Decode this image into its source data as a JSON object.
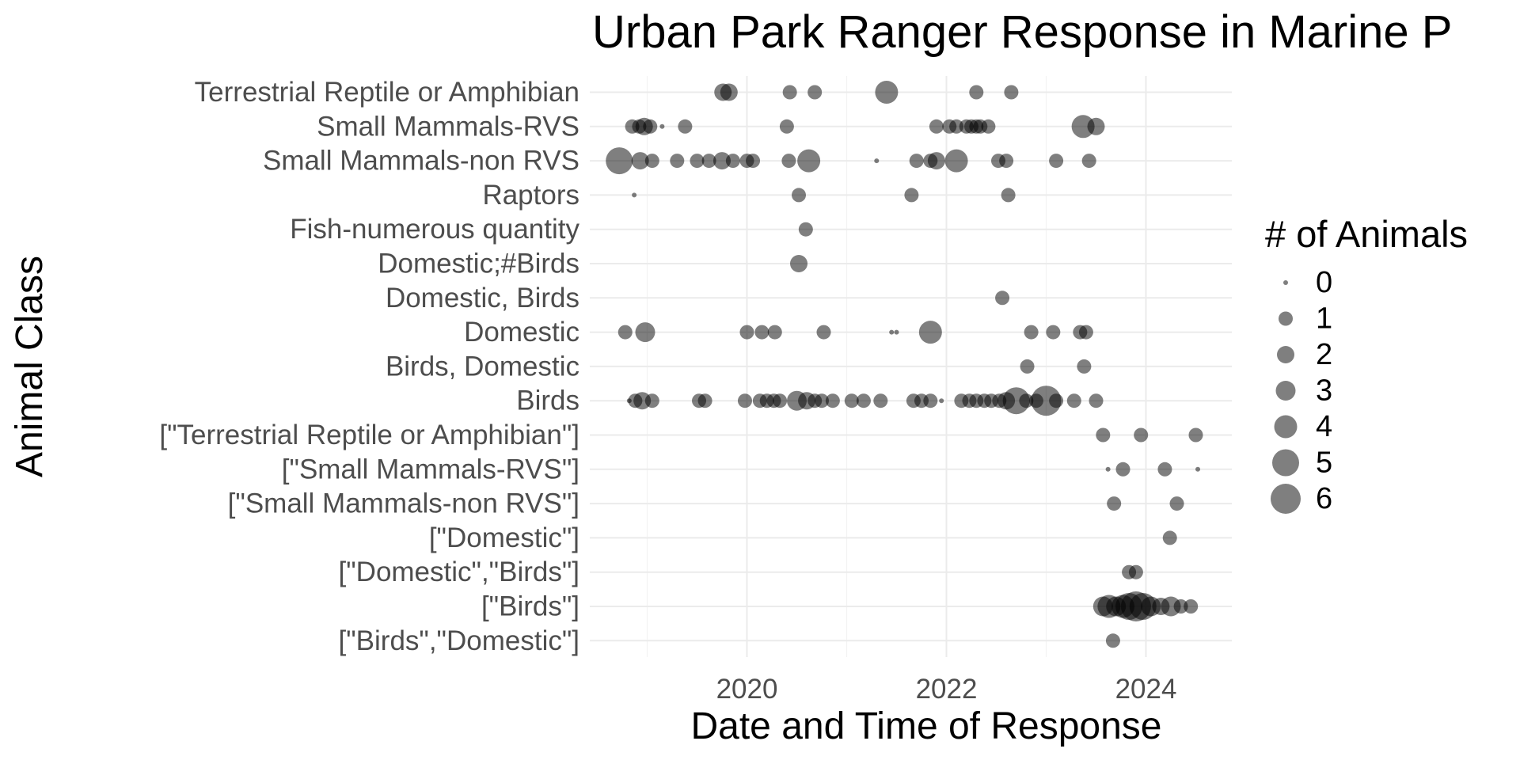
{
  "chart_data": {
    "type": "scatter",
    "title": "Urban Park Ranger Response in Marine P",
    "xlabel": "Date and Time of Response",
    "ylabel": "Animal Class",
    "xlim": [
      2018.6,
      2024.9
    ],
    "x_ticks": [
      2020,
      2022,
      2024
    ],
    "x_tick_labels": [
      "2020",
      "2022",
      "2024"
    ],
    "grid": true,
    "categories": [
      "Terrestrial Reptile or Amphibian",
      "Small Mammals-RVS",
      "Small Mammals-non RVS",
      "Raptors",
      "Fish-numerous quantity",
      "Domestic;#Birds",
      "Domestic, Birds",
      "Domestic",
      "Birds, Domestic",
      "Birds",
      "[\"Terrestrial Reptile or Amphibian\"]",
      "[\"Small Mammals-RVS\"]",
      "[\"Small Mammals-non RVS\"]",
      "[\"Domestic\"]",
      "[\"Domestic\",\"Birds\"]",
      "[\"Birds\"]",
      "[\"Birds\",\"Domestic\"]"
    ],
    "size_legend": {
      "title": "# of Animals",
      "placement": "right",
      "values": [
        0,
        1,
        2,
        3,
        4,
        5,
        6
      ],
      "labels": [
        "0",
        "1",
        "2",
        "3",
        "4",
        "5",
        "6"
      ]
    },
    "point_color": "#000000",
    "point_opacity": 0.5,
    "points": [
      {
        "x": 2019.76,
        "y": "Terrestrial Reptile or Amphibian",
        "size": 2
      },
      {
        "x": 2019.82,
        "y": "Terrestrial Reptile or Amphibian",
        "size": 2
      },
      {
        "x": 2020.43,
        "y": "Terrestrial Reptile or Amphibian",
        "size": 1
      },
      {
        "x": 2020.68,
        "y": "Terrestrial Reptile or Amphibian",
        "size": 1
      },
      {
        "x": 2021.4,
        "y": "Terrestrial Reptile or Amphibian",
        "size": 4
      },
      {
        "x": 2022.3,
        "y": "Terrestrial Reptile or Amphibian",
        "size": 1
      },
      {
        "x": 2022.65,
        "y": "Terrestrial Reptile or Amphibian",
        "size": 1
      },
      {
        "x": 2018.85,
        "y": "Small Mammals-RVS",
        "size": 1
      },
      {
        "x": 2018.92,
        "y": "Small Mammals-RVS",
        "size": 1
      },
      {
        "x": 2018.97,
        "y": "Small Mammals-RVS",
        "size": 2
      },
      {
        "x": 2019.03,
        "y": "Small Mammals-RVS",
        "size": 1
      },
      {
        "x": 2019.15,
        "y": "Small Mammals-RVS",
        "size": 0
      },
      {
        "x": 2019.38,
        "y": "Small Mammals-RVS",
        "size": 1
      },
      {
        "x": 2020.4,
        "y": "Small Mammals-RVS",
        "size": 1
      },
      {
        "x": 2021.9,
        "y": "Small Mammals-RVS",
        "size": 1
      },
      {
        "x": 2022.03,
        "y": "Small Mammals-RVS",
        "size": 1
      },
      {
        "x": 2022.1,
        "y": "Small Mammals-RVS",
        "size": 1
      },
      {
        "x": 2022.2,
        "y": "Small Mammals-RVS",
        "size": 1
      },
      {
        "x": 2022.25,
        "y": "Small Mammals-RVS",
        "size": 1
      },
      {
        "x": 2022.3,
        "y": "Small Mammals-RVS",
        "size": 1
      },
      {
        "x": 2022.34,
        "y": "Small Mammals-RVS",
        "size": 1
      },
      {
        "x": 2022.42,
        "y": "Small Mammals-RVS",
        "size": 1
      },
      {
        "x": 2023.37,
        "y": "Small Mammals-RVS",
        "size": 4
      },
      {
        "x": 2023.5,
        "y": "Small Mammals-RVS",
        "size": 2
      },
      {
        "x": 2018.72,
        "y": "Small Mammals-non RVS",
        "size": 5
      },
      {
        "x": 2018.93,
        "y": "Small Mammals-non RVS",
        "size": 2
      },
      {
        "x": 2019.05,
        "y": "Small Mammals-non RVS",
        "size": 1
      },
      {
        "x": 2019.3,
        "y": "Small Mammals-non RVS",
        "size": 1
      },
      {
        "x": 2019.5,
        "y": "Small Mammals-non RVS",
        "size": 1
      },
      {
        "x": 2019.62,
        "y": "Small Mammals-non RVS",
        "size": 1
      },
      {
        "x": 2019.75,
        "y": "Small Mammals-non RVS",
        "size": 2
      },
      {
        "x": 2019.86,
        "y": "Small Mammals-non RVS",
        "size": 1
      },
      {
        "x": 2020.0,
        "y": "Small Mammals-non RVS",
        "size": 1
      },
      {
        "x": 2020.06,
        "y": "Small Mammals-non RVS",
        "size": 1
      },
      {
        "x": 2020.42,
        "y": "Small Mammals-non RVS",
        "size": 1
      },
      {
        "x": 2020.62,
        "y": "Small Mammals-non RVS",
        "size": 4
      },
      {
        "x": 2021.3,
        "y": "Small Mammals-non RVS",
        "size": 0
      },
      {
        "x": 2021.7,
        "y": "Small Mammals-non RVS",
        "size": 1
      },
      {
        "x": 2021.84,
        "y": "Small Mammals-non RVS",
        "size": 1
      },
      {
        "x": 2021.9,
        "y": "Small Mammals-non RVS",
        "size": 2
      },
      {
        "x": 2022.1,
        "y": "Small Mammals-non RVS",
        "size": 4
      },
      {
        "x": 2022.52,
        "y": "Small Mammals-non RVS",
        "size": 1
      },
      {
        "x": 2022.6,
        "y": "Small Mammals-non RVS",
        "size": 1
      },
      {
        "x": 2023.1,
        "y": "Small Mammals-non RVS",
        "size": 1
      },
      {
        "x": 2023.43,
        "y": "Small Mammals-non RVS",
        "size": 1
      },
      {
        "x": 2018.87,
        "y": "Raptors",
        "size": 0
      },
      {
        "x": 2020.52,
        "y": "Raptors",
        "size": 1
      },
      {
        "x": 2021.65,
        "y": "Raptors",
        "size": 1
      },
      {
        "x": 2022.62,
        "y": "Raptors",
        "size": 1
      },
      {
        "x": 2020.59,
        "y": "Fish-numerous quantity",
        "size": 1
      },
      {
        "x": 2020.52,
        "y": "Domestic;#Birds",
        "size": 2
      },
      {
        "x": 2022.56,
        "y": "Domestic, Birds",
        "size": 1
      },
      {
        "x": 2018.78,
        "y": "Domestic",
        "size": 1
      },
      {
        "x": 2018.98,
        "y": "Domestic",
        "size": 3
      },
      {
        "x": 2020.0,
        "y": "Domestic",
        "size": 1
      },
      {
        "x": 2020.15,
        "y": "Domestic",
        "size": 1
      },
      {
        "x": 2020.28,
        "y": "Domestic",
        "size": 1
      },
      {
        "x": 2020.77,
        "y": "Domestic",
        "size": 1
      },
      {
        "x": 2021.45,
        "y": "Domestic",
        "size": 0
      },
      {
        "x": 2021.5,
        "y": "Domestic",
        "size": 0
      },
      {
        "x": 2021.84,
        "y": "Domestic",
        "size": 4
      },
      {
        "x": 2022.85,
        "y": "Domestic",
        "size": 1
      },
      {
        "x": 2023.07,
        "y": "Domestic",
        "size": 1
      },
      {
        "x": 2023.34,
        "y": "Domestic",
        "size": 1
      },
      {
        "x": 2023.4,
        "y": "Domestic",
        "size": 1
      },
      {
        "x": 2022.81,
        "y": "Birds, Domestic",
        "size": 1
      },
      {
        "x": 2023.38,
        "y": "Birds, Domestic",
        "size": 1
      },
      {
        "x": 2018.82,
        "y": "Birds",
        "size": 0
      },
      {
        "x": 2018.88,
        "y": "Birds",
        "size": 1
      },
      {
        "x": 2018.95,
        "y": "Birds",
        "size": 2
      },
      {
        "x": 2019.05,
        "y": "Birds",
        "size": 1
      },
      {
        "x": 2019.52,
        "y": "Birds",
        "size": 1
      },
      {
        "x": 2019.58,
        "y": "Birds",
        "size": 1
      },
      {
        "x": 2019.98,
        "y": "Birds",
        "size": 1
      },
      {
        "x": 2020.13,
        "y": "Birds",
        "size": 1
      },
      {
        "x": 2020.2,
        "y": "Birds",
        "size": 1
      },
      {
        "x": 2020.27,
        "y": "Birds",
        "size": 1
      },
      {
        "x": 2020.33,
        "y": "Birds",
        "size": 1
      },
      {
        "x": 2020.5,
        "y": "Birds",
        "size": 3
      },
      {
        "x": 2020.6,
        "y": "Birds",
        "size": 2
      },
      {
        "x": 2020.68,
        "y": "Birds",
        "size": 1
      },
      {
        "x": 2020.75,
        "y": "Birds",
        "size": 1
      },
      {
        "x": 2020.86,
        "y": "Birds",
        "size": 1
      },
      {
        "x": 2021.05,
        "y": "Birds",
        "size": 1
      },
      {
        "x": 2021.17,
        "y": "Birds",
        "size": 1
      },
      {
        "x": 2021.34,
        "y": "Birds",
        "size": 1
      },
      {
        "x": 2021.67,
        "y": "Birds",
        "size": 1
      },
      {
        "x": 2021.75,
        "y": "Birds",
        "size": 1
      },
      {
        "x": 2021.84,
        "y": "Birds",
        "size": 1
      },
      {
        "x": 2021.95,
        "y": "Birds",
        "size": 0
      },
      {
        "x": 2022.15,
        "y": "Birds",
        "size": 1
      },
      {
        "x": 2022.23,
        "y": "Birds",
        "size": 1
      },
      {
        "x": 2022.3,
        "y": "Birds",
        "size": 1
      },
      {
        "x": 2022.38,
        "y": "Birds",
        "size": 1
      },
      {
        "x": 2022.45,
        "y": "Birds",
        "size": 1
      },
      {
        "x": 2022.53,
        "y": "Birds",
        "size": 1
      },
      {
        "x": 2022.6,
        "y": "Birds",
        "size": 2
      },
      {
        "x": 2022.7,
        "y": "Birds",
        "size": 5
      },
      {
        "x": 2022.8,
        "y": "Birds",
        "size": 1
      },
      {
        "x": 2022.9,
        "y": "Birds",
        "size": 1
      },
      {
        "x": 2023.0,
        "y": "Birds",
        "size": 6
      },
      {
        "x": 2023.1,
        "y": "Birds",
        "size": 1
      },
      {
        "x": 2023.28,
        "y": "Birds",
        "size": 1
      },
      {
        "x": 2023.5,
        "y": "Birds",
        "size": 1
      },
      {
        "x": 2023.57,
        "y": "[\"Terrestrial Reptile or Amphibian\"]",
        "size": 1
      },
      {
        "x": 2023.95,
        "y": "[\"Terrestrial Reptile or Amphibian\"]",
        "size": 1
      },
      {
        "x": 2024.5,
        "y": "[\"Terrestrial Reptile or Amphibian\"]",
        "size": 1
      },
      {
        "x": 2023.62,
        "y": "[\"Small Mammals-RVS\"]",
        "size": 0
      },
      {
        "x": 2023.77,
        "y": "[\"Small Mammals-RVS\"]",
        "size": 1
      },
      {
        "x": 2024.19,
        "y": "[\"Small Mammals-RVS\"]",
        "size": 1
      },
      {
        "x": 2024.52,
        "y": "[\"Small Mammals-RVS\"]",
        "size": 0
      },
      {
        "x": 2023.68,
        "y": "[\"Small Mammals-non RVS\"]",
        "size": 1
      },
      {
        "x": 2024.31,
        "y": "[\"Small Mammals-non RVS\"]",
        "size": 1
      },
      {
        "x": 2024.24,
        "y": "[\"Domestic\"]",
        "size": 1
      },
      {
        "x": 2023.83,
        "y": "[\"Domestic\",\"Birds\"]",
        "size": 1
      },
      {
        "x": 2023.9,
        "y": "[\"Domestic\",\"Birds\"]",
        "size": 1
      },
      {
        "x": 2023.57,
        "y": "[\"Birds\"]",
        "size": 3
      },
      {
        "x": 2023.63,
        "y": "[\"Birds\"]",
        "size": 4
      },
      {
        "x": 2023.7,
        "y": "[\"Birds\"]",
        "size": 3
      },
      {
        "x": 2023.77,
        "y": "[\"Birds\"]",
        "size": 4
      },
      {
        "x": 2023.83,
        "y": "[\"Birds\"]",
        "size": 5
      },
      {
        "x": 2023.9,
        "y": "[\"Birds\"]",
        "size": 6
      },
      {
        "x": 2023.97,
        "y": "[\"Birds\"]",
        "size": 5
      },
      {
        "x": 2024.05,
        "y": "[\"Birds\"]",
        "size": 3
      },
      {
        "x": 2024.15,
        "y": "[\"Birds\"]",
        "size": 2
      },
      {
        "x": 2024.25,
        "y": "[\"Birds\"]",
        "size": 3
      },
      {
        "x": 2024.35,
        "y": "[\"Birds\"]",
        "size": 1
      },
      {
        "x": 2024.45,
        "y": "[\"Birds\"]",
        "size": 1
      },
      {
        "x": 2023.67,
        "y": "[\"Birds\",\"Domestic\"]",
        "size": 1
      }
    ]
  }
}
